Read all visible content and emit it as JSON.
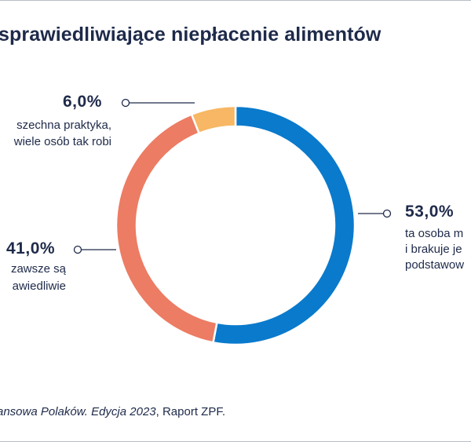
{
  "chart_data": {
    "type": "pie",
    "title": "sprawiedliwiające niepłacenie alimentów",
    "slices": [
      {
        "label_lines": [
          "ta osoba m",
          "i brakuje je",
          "podstawow"
        ],
        "value": 53.0,
        "value_label": "53,0%",
        "color": "#0a7acc"
      },
      {
        "label_lines": [
          "zawsze są",
          "awiedliwie"
        ],
        "value": 41.0,
        "value_label": "41,0%",
        "color": "#ec7c63"
      },
      {
        "label_lines": [
          "szechna praktyka,",
          "wiele osób tak robi"
        ],
        "value": 6.0,
        "value_label": "6,0%",
        "color": "#f7b764"
      }
    ]
  },
  "source": {
    "italic": "ansowa Polaków. Edycja 2023",
    "rest": ", Raport ZPF."
  }
}
